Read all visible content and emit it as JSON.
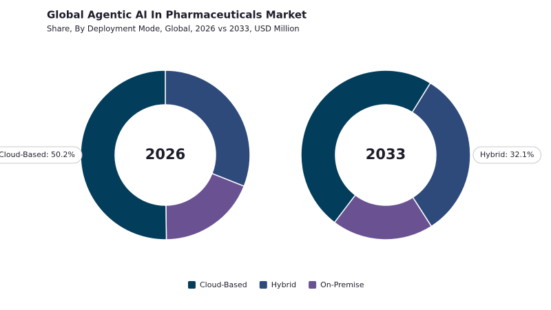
{
  "title": "Global Agentic AI In Pharmaceuticals Market",
  "subtitle": "Share, By Deployment Mode, Global, 2026 vs 2033, USD Million",
  "chart_data": [
    {
      "type": "donut",
      "title": "2026",
      "categories": [
        "Cloud-Based",
        "Hybrid",
        "On-Premise"
      ],
      "values": [
        50.2,
        31.0,
        18.8
      ],
      "colors": [
        "#023e5b",
        "#2e4a7b",
        "#6a5292"
      ],
      "annotation": "Cloud-Based: 50.2%"
    },
    {
      "type": "donut",
      "title": "2033",
      "categories": [
        "Cloud-Based",
        "Hybrid",
        "On-Premise"
      ],
      "values": [
        48.5,
        32.1,
        19.4
      ],
      "colors": [
        "#023e5b",
        "#2e4a7b",
        "#6a5292"
      ],
      "annotation": "Hybrid: 32.1%"
    }
  ]
}
